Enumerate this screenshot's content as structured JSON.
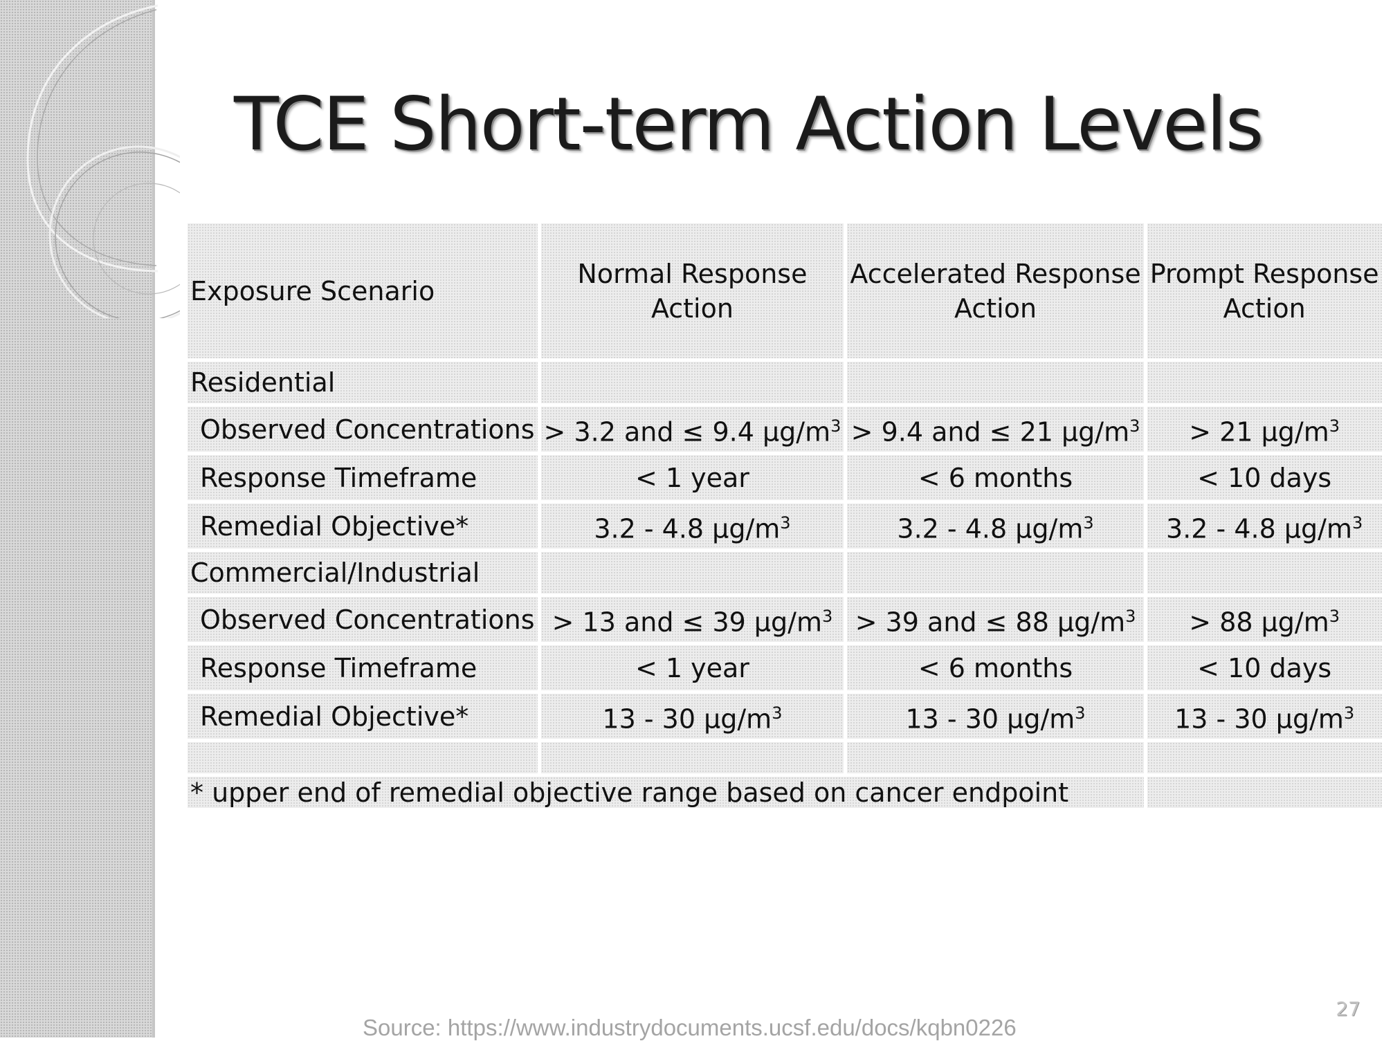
{
  "slide": {
    "title": "TCE Short-term Action Levels",
    "page_number": "27"
  },
  "table": {
    "headers": [
      "Exposure Scenario",
      "Normal Response\nAction",
      "Accelerated Response\nAction",
      "Prompt Response\nAction"
    ],
    "sections": [
      {
        "name": "Residential",
        "rows": [
          {
            "label": "Observed Concentrations",
            "values": [
              "> 3.2 and ≤ 9.4 μg/m³",
              "> 9.4 and ≤ 21 μg/m³",
              "> 21 μg/m³"
            ]
          },
          {
            "label": "Response Timeframe",
            "values": [
              "< 1 year",
              "< 6 months",
              "< 10 days"
            ]
          },
          {
            "label": "Remedial Objective*",
            "values": [
              "3.2 - 4.8  μg/m³",
              "3.2 - 4.8  μg/m³",
              "3.2 - 4.8  μg/m³"
            ]
          }
        ]
      },
      {
        "name": "Commercial/Industrial",
        "rows": [
          {
            "label": "Observed Concentrations",
            "values": [
              "> 13 and ≤ 39 μg/m³",
              "> 39 and ≤ 88 μg/m³",
              "> 88 μg/m³"
            ]
          },
          {
            "label": "Response Timeframe",
            "values": [
              "< 1 year",
              "< 6 months",
              "< 10 days"
            ]
          },
          {
            "label": "Remedial Objective*",
            "values": [
              "13 - 30  μg/m³",
              "13 - 30  μg/m³",
              "13 - 30  μg/m³"
            ]
          }
        ]
      }
    ],
    "footnote": "* upper end of remedial objective range based on cancer endpoint"
  },
  "source": "Source: https://www.industrydocuments.ucsf.edu/docs/kqbn0226"
}
